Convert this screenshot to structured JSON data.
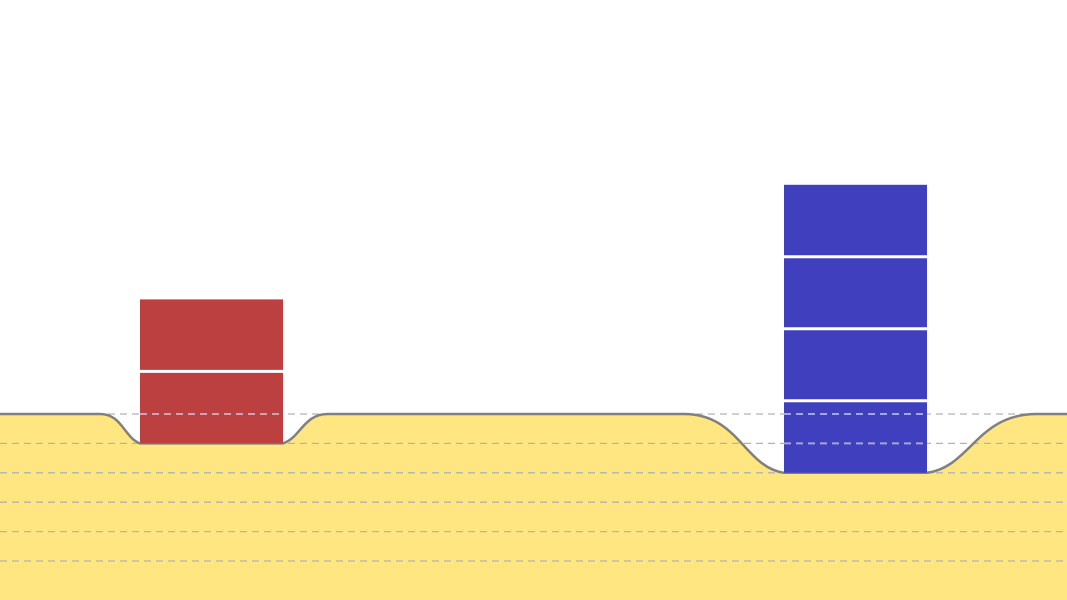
{
  "colors": {
    "background": "#ffffff",
    "ground_fill": "#ffe680",
    "ground_outline": "#808080",
    "gridline": "#b3b3b3",
    "separator": "#ffffff"
  },
  "layers": {
    "surface_level": 0,
    "levels_shown": 6
  },
  "stacks": [
    {
      "id": "left",
      "color": "#bc4040",
      "blocks": 2,
      "sink_depth": 1
    },
    {
      "id": "right",
      "color": "#4040bf",
      "blocks": 4,
      "sink_depth": 2
    }
  ]
}
